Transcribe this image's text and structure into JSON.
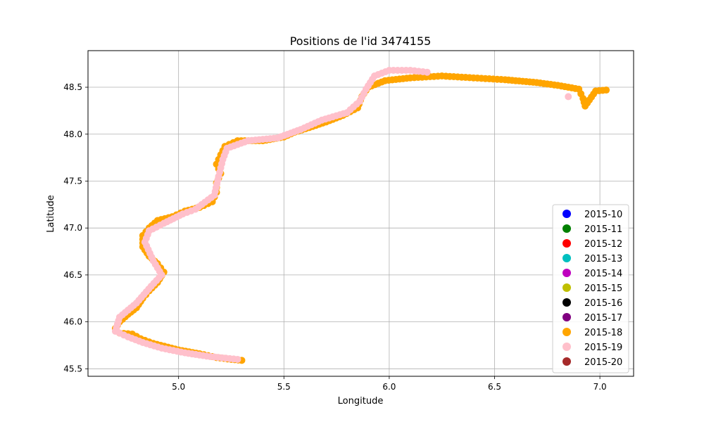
{
  "chart_data": {
    "type": "scatter",
    "title": "Positions de l'id 3474155",
    "xlabel": "Longitude",
    "ylabel": "Latitude",
    "xlim": [
      4.57,
      7.16
    ],
    "ylim": [
      45.42,
      48.89
    ],
    "xticks": [
      5.0,
      5.5,
      6.0,
      6.5,
      7.0
    ],
    "xtick_labels": [
      "5.0",
      "5.5",
      "6.0",
      "6.5",
      "7.0"
    ],
    "yticks": [
      45.5,
      46.0,
      46.5,
      47.0,
      47.5,
      48.0,
      48.5
    ],
    "ytick_labels": [
      "45.5",
      "46.0",
      "46.5",
      "47.0",
      "47.5",
      "48.0",
      "48.5"
    ],
    "grid": true,
    "legend_position": "lower-right",
    "legend": [
      {
        "label": "2015-10",
        "color": "#0000ff"
      },
      {
        "label": "2015-11",
        "color": "#008000"
      },
      {
        "label": "2015-12",
        "color": "#ff0000"
      },
      {
        "label": "2015-13",
        "color": "#00bfbf"
      },
      {
        "label": "2015-14",
        "color": "#bf00bf"
      },
      {
        "label": "2015-15",
        "color": "#bfbf00"
      },
      {
        "label": "2015-16",
        "color": "#000000"
      },
      {
        "label": "2015-17",
        "color": "#800080"
      },
      {
        "label": "2015-18",
        "color": "#ffa500"
      },
      {
        "label": "2015-19",
        "color": "#ffc0cb"
      },
      {
        "label": "2015-20",
        "color": "#a52a2a"
      }
    ],
    "series": [
      {
        "name": "2015-18",
        "color": "#ffa500",
        "points": [
          [
            5.3,
            45.59
          ],
          [
            5.25,
            45.6
          ],
          [
            5.18,
            45.62
          ],
          [
            5.1,
            45.66
          ],
          [
            5.0,
            45.7
          ],
          [
            4.95,
            45.73
          ],
          [
            4.88,
            45.77
          ],
          [
            4.82,
            45.82
          ],
          [
            4.78,
            45.87
          ],
          [
            4.72,
            45.88
          ],
          [
            4.7,
            45.93
          ],
          [
            4.72,
            46.0
          ],
          [
            4.76,
            46.08
          ],
          [
            4.8,
            46.15
          ],
          [
            4.83,
            46.25
          ],
          [
            4.86,
            46.33
          ],
          [
            4.9,
            46.42
          ],
          [
            4.93,
            46.53
          ],
          [
            4.9,
            46.62
          ],
          [
            4.86,
            46.7
          ],
          [
            4.83,
            46.8
          ],
          [
            4.83,
            46.92
          ],
          [
            4.86,
            47.0
          ],
          [
            4.9,
            47.08
          ],
          [
            4.97,
            47.12
          ],
          [
            5.03,
            47.18
          ],
          [
            5.1,
            47.22
          ],
          [
            5.16,
            47.28
          ],
          [
            5.18,
            47.38
          ],
          [
            5.18,
            47.48
          ],
          [
            5.2,
            47.58
          ],
          [
            5.18,
            47.68
          ],
          [
            5.2,
            47.78
          ],
          [
            5.22,
            47.87
          ],
          [
            5.28,
            47.93
          ],
          [
            5.4,
            47.93
          ],
          [
            5.5,
            47.97
          ],
          [
            5.55,
            48.02
          ],
          [
            5.62,
            48.07
          ],
          [
            5.7,
            48.13
          ],
          [
            5.78,
            48.2
          ],
          [
            5.85,
            48.28
          ],
          [
            5.87,
            48.4
          ],
          [
            5.9,
            48.5
          ],
          [
            5.98,
            48.57
          ],
          [
            6.1,
            48.6
          ],
          [
            6.25,
            48.62
          ],
          [
            6.4,
            48.6
          ],
          [
            6.55,
            48.58
          ],
          [
            6.7,
            48.55
          ],
          [
            6.8,
            48.52
          ],
          [
            6.9,
            48.48
          ],
          [
            6.92,
            48.38
          ],
          [
            6.93,
            48.3
          ],
          [
            6.98,
            48.46
          ],
          [
            7.03,
            48.47
          ]
        ]
      },
      {
        "name": "2015-19",
        "color": "#ffc0cb",
        "points": [
          [
            5.28,
            45.6
          ],
          [
            5.15,
            45.63
          ],
          [
            5.03,
            45.67
          ],
          [
            4.92,
            45.72
          ],
          [
            4.83,
            45.78
          ],
          [
            4.76,
            45.84
          ],
          [
            4.7,
            45.9
          ],
          [
            4.72,
            46.05
          ],
          [
            4.8,
            46.2
          ],
          [
            4.87,
            46.38
          ],
          [
            4.92,
            46.5
          ],
          [
            4.88,
            46.65
          ],
          [
            4.84,
            46.85
          ],
          [
            4.86,
            46.97
          ],
          [
            4.93,
            47.05
          ],
          [
            5.02,
            47.15
          ],
          [
            5.08,
            47.2
          ],
          [
            5.17,
            47.35
          ],
          [
            5.19,
            47.55
          ],
          [
            5.21,
            47.73
          ],
          [
            5.23,
            47.85
          ],
          [
            5.33,
            47.93
          ],
          [
            5.47,
            47.96
          ],
          [
            5.58,
            48.05
          ],
          [
            5.68,
            48.15
          ],
          [
            5.8,
            48.23
          ],
          [
            5.86,
            48.35
          ],
          [
            5.89,
            48.48
          ],
          [
            5.93,
            48.62
          ],
          [
            6.0,
            48.68
          ],
          [
            6.1,
            48.68
          ],
          [
            6.18,
            48.66
          ],
          [
            6.85,
            48.4
          ]
        ]
      }
    ]
  }
}
